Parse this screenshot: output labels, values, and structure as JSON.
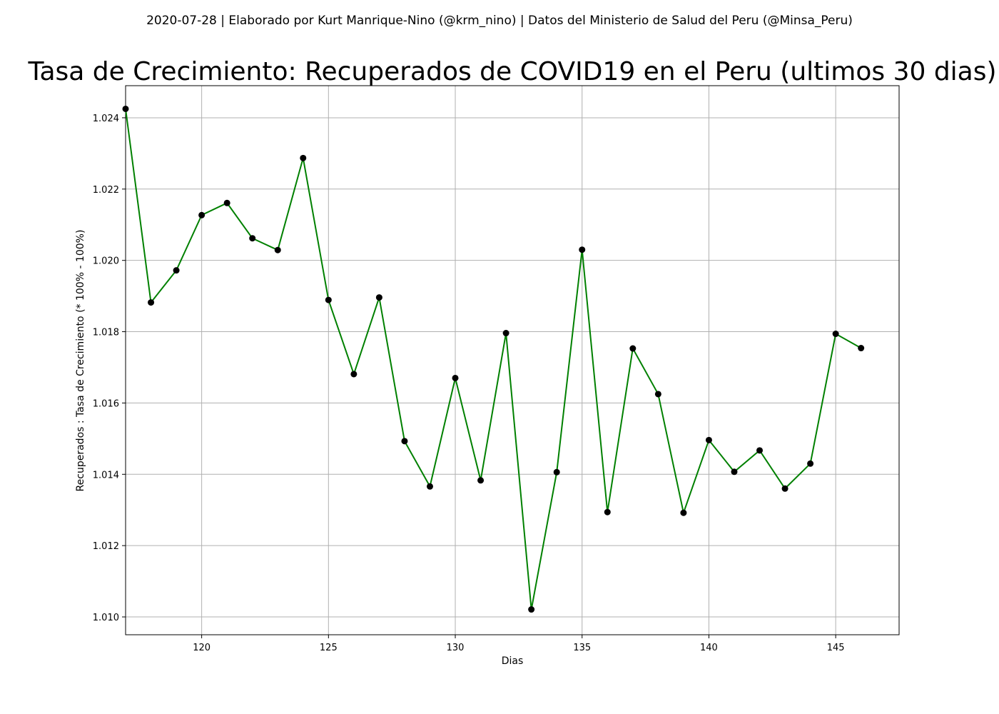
{
  "header": {
    "suptitle": "2020-07-28 | Elaborado por Kurt Manrique-Nino (@krm_nino) | Datos del Ministerio de Salud del Peru (@Minsa_Peru)"
  },
  "chart_data": {
    "type": "line",
    "title": "Tasa de Crecimiento: Recuperados de COVID19 en el Peru (ultimos 30 dias)",
    "xlabel": "Dias",
    "ylabel": "Recuperados : Tasa de Crecimiento (* 100% - 100%)",
    "xlim": [
      117,
      147.5
    ],
    "ylim": [
      1.0095,
      1.0249
    ],
    "xticks": [
      120,
      125,
      130,
      135,
      140,
      145
    ],
    "yticks": [
      1.01,
      1.012,
      1.014,
      1.016,
      1.018,
      1.02,
      1.022,
      1.024
    ],
    "ytick_labels": [
      "1.010",
      "1.012",
      "1.014",
      "1.016",
      "1.018",
      "1.020",
      "1.022",
      "1.024"
    ],
    "grid": true,
    "line_color": "#008000",
    "marker_color": "#000000",
    "series": [
      {
        "x": [
          117,
          118,
          119,
          120,
          121,
          122,
          123,
          124,
          125,
          126,
          127,
          128,
          129,
          130,
          131,
          132,
          133,
          134,
          135,
          136,
          137,
          138,
          139,
          140,
          141,
          142,
          143,
          144,
          145,
          146
        ],
        "values": [
          1.02425,
          1.01882,
          1.01972,
          1.02127,
          1.02161,
          1.02062,
          1.02029,
          1.02287,
          1.01889,
          1.01681,
          1.01896,
          1.01493,
          1.01366,
          1.0167,
          1.01383,
          1.01796,
          1.01021,
          1.01406,
          1.0203,
          1.01294,
          1.01753,
          1.01625,
          1.01292,
          1.01496,
          1.01407,
          1.01467,
          1.0136,
          1.0143,
          1.01794,
          1.01754
        ]
      }
    ]
  }
}
